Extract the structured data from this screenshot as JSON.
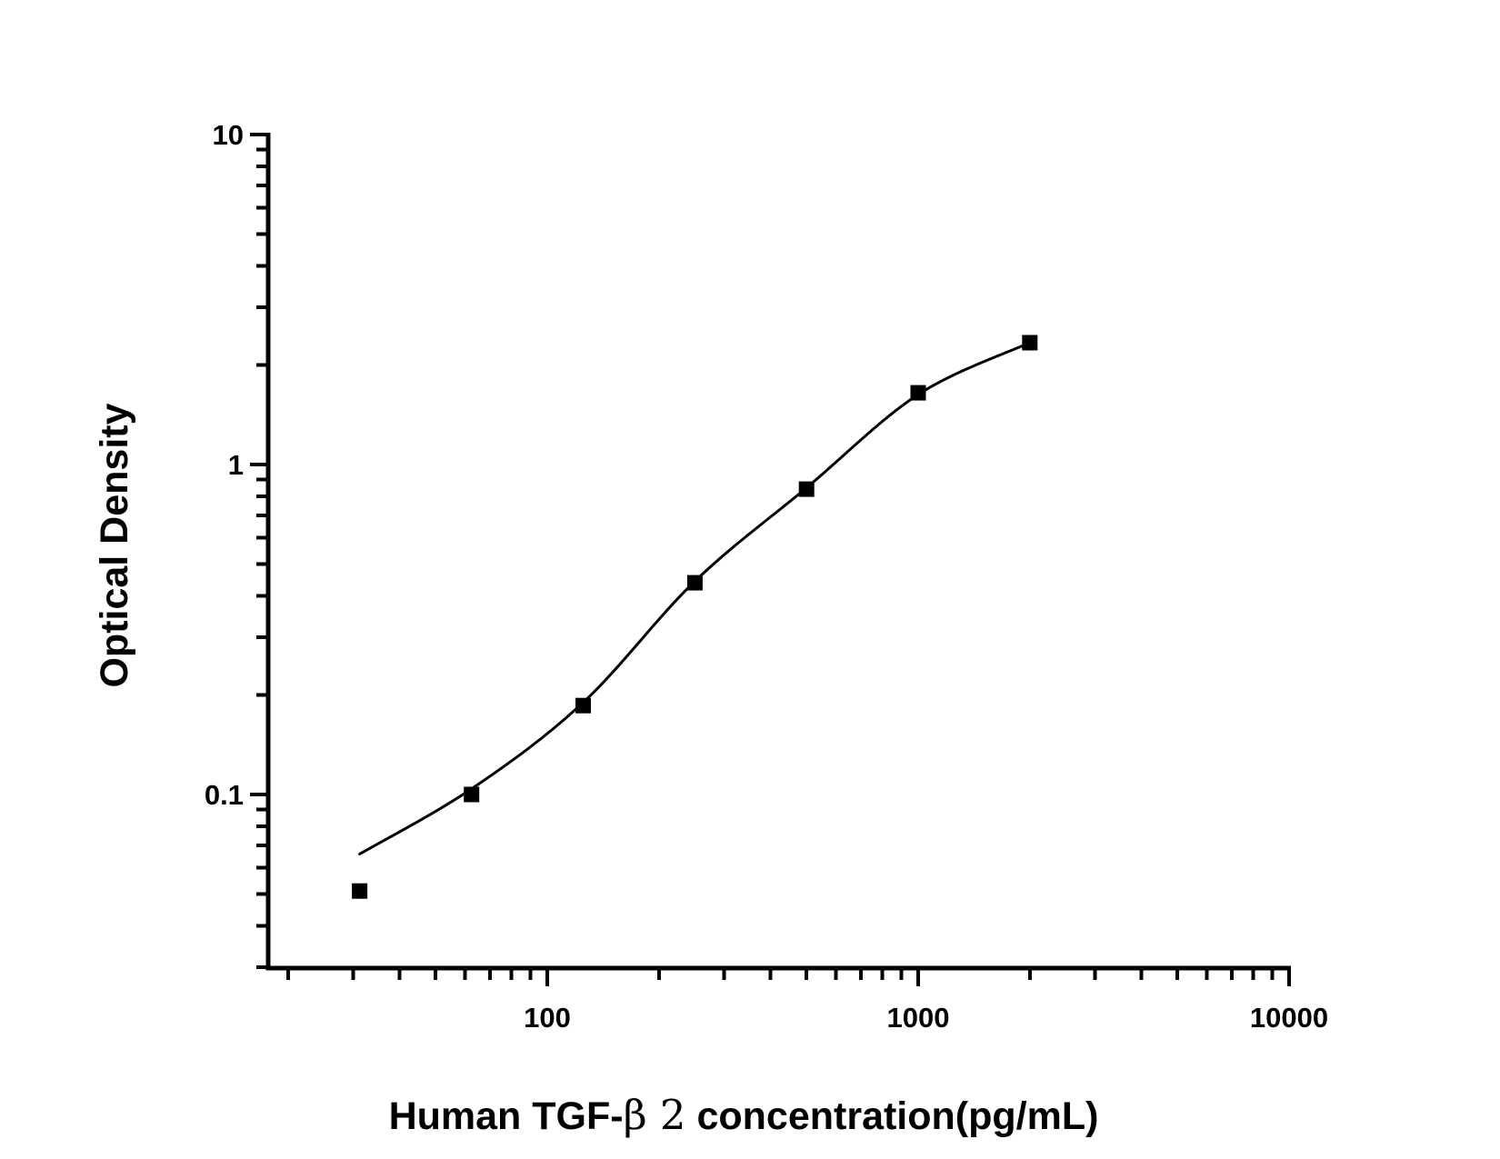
{
  "chart_data": {
    "type": "scatter",
    "title": "",
    "xlabel": "Human TGF-β 2 concentration(pg/mL)",
    "xlabel_parts": {
      "prefix": "Human TGF-",
      "beta": "β 2",
      "suffix": " concentration(pg/mL)"
    },
    "ylabel": "Optical Density",
    "x_scale": "log",
    "y_scale": "log",
    "xlim": [
      17.7,
      10114
    ],
    "ylim": [
      0.0298,
      10
    ],
    "grid": false,
    "legend": "none",
    "x_major_ticks": [
      {
        "value": 100,
        "label": "100"
      },
      {
        "value": 1000,
        "label": "1000"
      },
      {
        "value": 10000,
        "label": "10000"
      }
    ],
    "x_minor_ticks": [
      20,
      30,
      40,
      50,
      60,
      70,
      80,
      90,
      200,
      300,
      400,
      500,
      600,
      700,
      800,
      900,
      2000,
      3000,
      4000,
      5000,
      6000,
      7000,
      8000,
      9000
    ],
    "y_major_ticks": [
      {
        "value": 10,
        "label": "10"
      },
      {
        "value": 1,
        "label": "1"
      },
      {
        "value": 0.1,
        "label": "0.1"
      }
    ],
    "y_minor_ticks": [
      9,
      8,
      7,
      6,
      5,
      4,
      3,
      2,
      0.9,
      0.8,
      0.7,
      0.6,
      0.5,
      0.4,
      0.3,
      0.2,
      0.09,
      0.08,
      0.07,
      0.06,
      0.05,
      0.04,
      0.03
    ],
    "series": [
      {
        "name": "standard-points",
        "marker": "filled-square",
        "color": "#000000",
        "points": [
          [
            31.2,
            0.051
          ],
          [
            62.5,
            0.1
          ],
          [
            125,
            0.186
          ],
          [
            250,
            0.438
          ],
          [
            500,
            0.842
          ],
          [
            1000,
            1.65
          ],
          [
            2000,
            2.34
          ]
        ]
      }
    ],
    "fit_curve": {
      "name": "4PL-fit-line",
      "color": "#000000",
      "points": [
        [
          31.2,
          0.066
        ],
        [
          62.5,
          0.104
        ],
        [
          125,
          0.19
        ],
        [
          250,
          0.443
        ],
        [
          500,
          0.85
        ],
        [
          1000,
          1.63
        ],
        [
          2000,
          2.34
        ]
      ]
    },
    "colors": {
      "foreground": "#000000",
      "background": "#ffffff"
    }
  }
}
